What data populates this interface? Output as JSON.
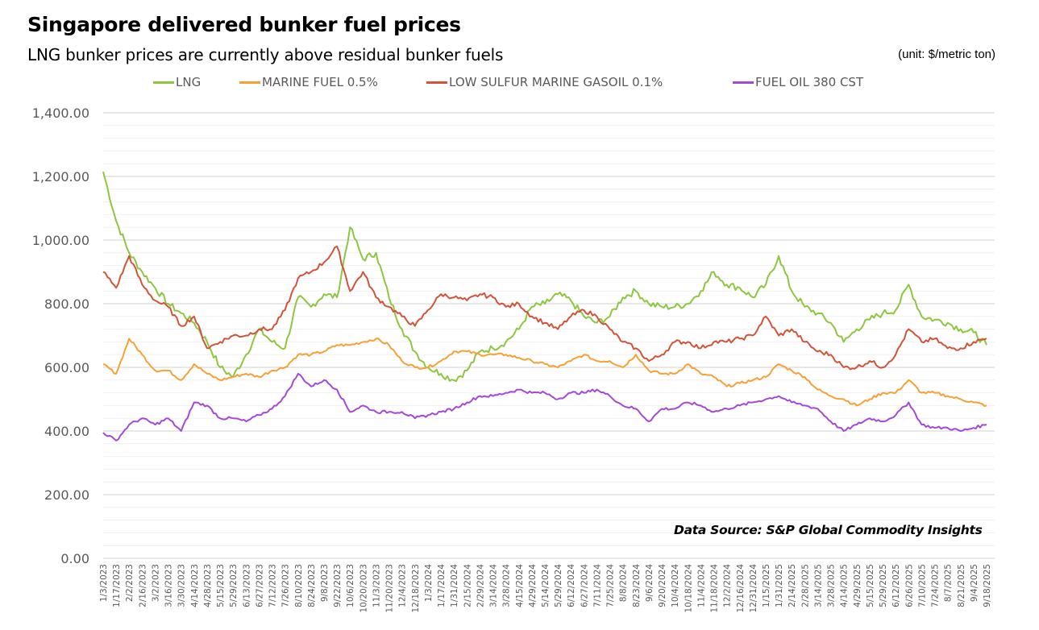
{
  "header": {
    "title": "Singapore delivered bunker fuel prices",
    "subtitle": "LNG bunker prices are currently above residual bunker fuels",
    "unit": "(unit: $/metric ton)"
  },
  "footer": {
    "source": "Data Source: S&P Global Commodity Insights"
  },
  "chart_data": {
    "type": "line",
    "title": "Singapore delivered bunker fuel prices",
    "subtitle": "LNG bunker prices are currently above residual bunker fuels",
    "xlabel": "",
    "ylabel": "$/metric ton",
    "ylim": [
      0,
      1400
    ],
    "yticks": [
      0,
      200,
      400,
      600,
      800,
      1000,
      1200,
      1400
    ],
    "ytick_labels": [
      "0.00",
      "200.00",
      "400.00",
      "600.00",
      "800.00",
      "1,000.00",
      "1,200.00",
      "1,400.00"
    ],
    "grid": true,
    "legend_position": "top",
    "x": [
      "1/3/2023",
      "1/17/2023",
      "2/2/2023",
      "2/16/2023",
      "3/2/2023",
      "3/16/2023",
      "3/30/2023",
      "4/14/2023",
      "4/28/2023",
      "5/15/2023",
      "5/29/2023",
      "6/13/2023",
      "6/27/2023",
      "7/12/2023",
      "7/26/2023",
      "8/10/2023",
      "8/24/2023",
      "9/8/2023",
      "9/22/2023",
      "10/6/2023",
      "10/20/2023",
      "11/3/2023",
      "11/20/2023",
      "12/4/2023",
      "12/18/2023",
      "1/3/2024",
      "1/17/2024",
      "1/31/2024",
      "2/15/2024",
      "2/29/2024",
      "3/14/2024",
      "3/28/2024",
      "4/15/2024",
      "4/29/2024",
      "5/14/2024",
      "5/29/2024",
      "6/12/2024",
      "6/27/2024",
      "7/11/2024",
      "7/25/2024",
      "8/8/2024",
      "8/23/2024",
      "9/6/2024",
      "9/20/2024",
      "10/4/2024",
      "10/18/2024",
      "11/4/2024",
      "11/18/2024",
      "12/2/2024",
      "12/16/2024",
      "12/31/2024",
      "1/15/2025",
      "1/31/2025",
      "2/14/2025",
      "2/28/2025",
      "3/14/2025",
      "3/28/2025",
      "4/14/2025",
      "4/29/2025",
      "5/15/2025",
      "5/29/2025",
      "6/12/2025",
      "6/26/2025",
      "7/10/2025",
      "7/24/2025",
      "8/7/2025",
      "8/21/2025",
      "9/4/2025",
      "9/18/2025"
    ],
    "series": [
      {
        "name": "LNG",
        "color": "#8dc63f",
        "values": [
          1215,
          1060,
          960,
          900,
          850,
          800,
          770,
          740,
          680,
          600,
          570,
          640,
          720,
          680,
          660,
          820,
          790,
          830,
          820,
          1040,
          940,
          960,
          820,
          720,
          650,
          600,
          580,
          560,
          590,
          650,
          660,
          680,
          720,
          790,
          800,
          830,
          810,
          760,
          740,
          760,
          820,
          840,
          800,
          790,
          790,
          800,
          840,
          900,
          860,
          850,
          820,
          860,
          950,
          840,
          790,
          770,
          740,
          680,
          720,
          750,
          770,
          780,
          860,
          760,
          750,
          740,
          720,
          710,
          670
        ]
      },
      {
        "name": "MARINE FUEL 0.5%",
        "color": "#f7a035",
        "values": [
          610,
          580,
          690,
          640,
          590,
          590,
          560,
          610,
          580,
          560,
          570,
          580,
          570,
          590,
          600,
          640,
          640,
          650,
          670,
          670,
          680,
          690,
          670,
          620,
          600,
          600,
          620,
          650,
          650,
          640,
          640,
          640,
          630,
          620,
          610,
          600,
          620,
          640,
          620,
          620,
          600,
          640,
          590,
          580,
          580,
          610,
          580,
          570,
          540,
          550,
          560,
          570,
          610,
          590,
          570,
          530,
          510,
          500,
          480,
          500,
          520,
          520,
          560,
          520,
          520,
          510,
          500,
          490,
          480
        ]
      },
      {
        "name": "LOW SULFUR MARINE GASOIL 0.1%",
        "color": "#d2533a",
        "values": [
          900,
          850,
          950,
          860,
          810,
          790,
          730,
          760,
          660,
          680,
          700,
          700,
          720,
          720,
          780,
          880,
          900,
          930,
          980,
          840,
          900,
          820,
          790,
          760,
          730,
          780,
          830,
          820,
          810,
          830,
          820,
          790,
          800,
          760,
          740,
          720,
          760,
          780,
          760,
          720,
          680,
          660,
          620,
          640,
          680,
          680,
          660,
          680,
          680,
          690,
          700,
          760,
          700,
          720,
          680,
          650,
          640,
          600,
          600,
          620,
          600,
          640,
          720,
          680,
          690,
          660,
          660,
          680,
          690
        ]
      },
      {
        "name": "FUEL OIL 380 CST",
        "color": "#a349d6",
        "values": [
          395,
          370,
          420,
          440,
          420,
          440,
          400,
          490,
          480,
          440,
          440,
          430,
          450,
          470,
          510,
          580,
          540,
          560,
          530,
          460,
          480,
          460,
          460,
          460,
          440,
          450,
          460,
          470,
          490,
          510,
          510,
          520,
          530,
          520,
          520,
          500,
          520,
          520,
          530,
          510,
          480,
          470,
          430,
          470,
          470,
          490,
          480,
          460,
          470,
          480,
          490,
          500,
          510,
          490,
          480,
          470,
          430,
          400,
          420,
          440,
          430,
          450,
          490,
          420,
          410,
          410,
          400,
          410,
          420
        ]
      }
    ]
  }
}
